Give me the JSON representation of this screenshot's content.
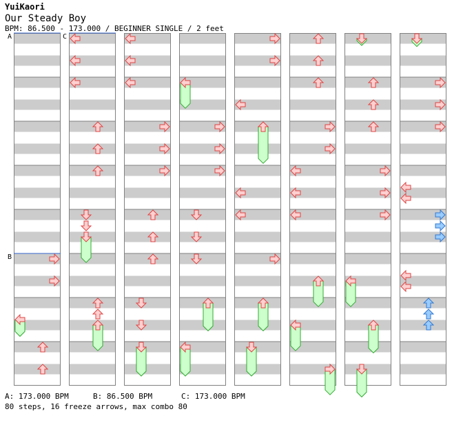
{
  "header": {
    "artist": "YuiKaori",
    "title": "Our Steady Boy",
    "info": "BPM: 86.500 - 173.000 / BEGINNER SINGLE / 2 feet"
  },
  "bpm_markers": [
    {
      "id": "A",
      "label": "A",
      "column": 0,
      "measure": 0
    },
    {
      "id": "B",
      "label": "B",
      "column": 0,
      "measure": 5
    },
    {
      "id": "C",
      "label": "C",
      "column": 1,
      "measure": 0
    }
  ],
  "legend": [
    {
      "label": "A: 173.000 BPM"
    },
    {
      "label": "B: 86.500 BPM"
    },
    {
      "label": "C: 173.000 BPM"
    }
  ],
  "summary": "80 steps, 16 freeze arrows, max combo 80",
  "colors": {
    "stripe": "#cccccc",
    "border": "#808080",
    "arrow_red_fill": "#ffd0d0",
    "arrow_red_stroke": "#dd4444",
    "arrow_blue_fill": "#99ccff",
    "arrow_blue_stroke": "#3377cc",
    "freeze_fill": "#ccffcc",
    "freeze_stroke": "#33aa33",
    "marker_line": "#3366cc"
  },
  "chart_data": {
    "type": "step-chart",
    "columns": 8,
    "measures_per_column": 8,
    "beats_per_measure": 4,
    "arrows": [
      {
        "col": 1,
        "m": 0,
        "b": 0,
        "dir": "left"
      },
      {
        "col": 1,
        "m": 0,
        "b": 2,
        "dir": "left"
      },
      {
        "col": 1,
        "m": 1,
        "b": 0,
        "dir": "left"
      },
      {
        "col": 1,
        "m": 2,
        "b": 0,
        "dir": "up"
      },
      {
        "col": 1,
        "m": 2,
        "b": 2,
        "dir": "up"
      },
      {
        "col": 1,
        "m": 3,
        "b": 0,
        "dir": "up"
      },
      {
        "col": 1,
        "m": 4,
        "b": 0,
        "dir": "down"
      },
      {
        "col": 1,
        "m": 4,
        "b": 1,
        "dir": "down"
      },
      {
        "col": 1,
        "m": 6,
        "b": 0,
        "dir": "up"
      },
      {
        "col": 1,
        "m": 6,
        "b": 1,
        "dir": "up"
      },
      {
        "col": 0,
        "m": 5,
        "b": 0,
        "dir": "right"
      },
      {
        "col": 0,
        "m": 5,
        "b": 2,
        "dir": "right"
      },
      {
        "col": 0,
        "m": 7,
        "b": 0,
        "dir": "up"
      },
      {
        "col": 0,
        "m": 7,
        "b": 2,
        "dir": "up"
      },
      {
        "col": 2,
        "m": 0,
        "b": 0,
        "dir": "left"
      },
      {
        "col": 2,
        "m": 0,
        "b": 2,
        "dir": "left"
      },
      {
        "col": 2,
        "m": 1,
        "b": 0,
        "dir": "left"
      },
      {
        "col": 2,
        "m": 2,
        "b": 0,
        "dir": "right"
      },
      {
        "col": 2,
        "m": 2,
        "b": 2,
        "dir": "right"
      },
      {
        "col": 2,
        "m": 3,
        "b": 0,
        "dir": "right"
      },
      {
        "col": 2,
        "m": 4,
        "b": 0,
        "dir": "up"
      },
      {
        "col": 2,
        "m": 4,
        "b": 2,
        "dir": "up"
      },
      {
        "col": 2,
        "m": 5,
        "b": 0,
        "dir": "up"
      },
      {
        "col": 2,
        "m": 6,
        "b": 0,
        "dir": "down"
      },
      {
        "col": 2,
        "m": 6,
        "b": 2,
        "dir": "down"
      },
      {
        "col": 3,
        "m": 2,
        "b": 0,
        "dir": "right"
      },
      {
        "col": 3,
        "m": 2,
        "b": 2,
        "dir": "right"
      },
      {
        "col": 3,
        "m": 3,
        "b": 0,
        "dir": "right"
      },
      {
        "col": 3,
        "m": 4,
        "b": 0,
        "dir": "down"
      },
      {
        "col": 3,
        "m": 4,
        "b": 2,
        "dir": "down"
      },
      {
        "col": 3,
        "m": 5,
        "b": 0,
        "dir": "down"
      },
      {
        "col": 4,
        "m": 0,
        "b": 0,
        "dir": "right"
      },
      {
        "col": 4,
        "m": 0,
        "b": 2,
        "dir": "right"
      },
      {
        "col": 4,
        "m": 1,
        "b": 2,
        "dir": "left"
      },
      {
        "col": 4,
        "m": 3,
        "b": 2,
        "dir": "left"
      },
      {
        "col": 4,
        "m": 4,
        "b": 0,
        "dir": "left"
      },
      {
        "col": 4,
        "m": 5,
        "b": 0,
        "dir": "right"
      },
      {
        "col": 5,
        "m": 0,
        "b": 0,
        "dir": "up"
      },
      {
        "col": 5,
        "m": 0,
        "b": 2,
        "dir": "up"
      },
      {
        "col": 5,
        "m": 1,
        "b": 0,
        "dir": "up"
      },
      {
        "col": 5,
        "m": 2,
        "b": 0,
        "dir": "right"
      },
      {
        "col": 5,
        "m": 2,
        "b": 2,
        "dir": "right"
      },
      {
        "col": 5,
        "m": 3,
        "b": 0,
        "dir": "left"
      },
      {
        "col": 5,
        "m": 3,
        "b": 2,
        "dir": "left"
      },
      {
        "col": 5,
        "m": 4,
        "b": 0,
        "dir": "left"
      },
      {
        "col": 6,
        "m": 1,
        "b": 0,
        "dir": "up"
      },
      {
        "col": 6,
        "m": 1,
        "b": 2,
        "dir": "up"
      },
      {
        "col": 6,
        "m": 2,
        "b": 0,
        "dir": "up"
      },
      {
        "col": 6,
        "m": 3,
        "b": 0,
        "dir": "right"
      },
      {
        "col": 6,
        "m": 3,
        "b": 2,
        "dir": "right"
      },
      {
        "col": 6,
        "m": 4,
        "b": 0,
        "dir": "right"
      },
      {
        "col": 7,
        "m": 1,
        "b": 0,
        "dir": "right"
      },
      {
        "col": 7,
        "m": 1,
        "b": 2,
        "dir": "right"
      },
      {
        "col": 7,
        "m": 2,
        "b": 0,
        "dir": "right"
      },
      {
        "col": 7,
        "m": 3,
        "b": 1.5,
        "dir": "left"
      },
      {
        "col": 7,
        "m": 3,
        "b": 2.5,
        "dir": "left"
      },
      {
        "col": 7,
        "m": 4,
        "b": 0,
        "dir": "right",
        "blue": true
      },
      {
        "col": 7,
        "m": 4,
        "b": 1,
        "dir": "right",
        "blue": true
      },
      {
        "col": 7,
        "m": 4,
        "b": 2,
        "dir": "right",
        "blue": true
      },
      {
        "col": 7,
        "m": 5,
        "b": 1.5,
        "dir": "left"
      },
      {
        "col": 7,
        "m": 5,
        "b": 2.5,
        "dir": "left"
      },
      {
        "col": 7,
        "m": 6,
        "b": 0,
        "dir": "up",
        "blue": true
      },
      {
        "col": 7,
        "m": 6,
        "b": 1,
        "dir": "up",
        "blue": true
      },
      {
        "col": 7,
        "m": 6,
        "b": 2,
        "dir": "up",
        "blue": true
      }
    ],
    "freezes": [
      {
        "col": 1,
        "m": 4,
        "b": 2,
        "len": 2.2,
        "dir": "down"
      },
      {
        "col": 1,
        "m": 6,
        "b": 2,
        "len": 2.2,
        "dir": "up"
      },
      {
        "col": 0,
        "m": 6,
        "b": 1.5,
        "len": 1.4,
        "dir": "left"
      },
      {
        "col": 2,
        "m": 7,
        "b": 0,
        "len": 2.5,
        "dir": "down"
      },
      {
        "col": 3,
        "m": 1,
        "b": 0,
        "len": 2.2,
        "dir": "left"
      },
      {
        "col": 3,
        "m": 6,
        "b": 0,
        "len": 2.4,
        "dir": "up"
      },
      {
        "col": 3,
        "m": 7,
        "b": 0,
        "len": 2.5,
        "dir": "left"
      },
      {
        "col": 4,
        "m": 2,
        "b": 0,
        "len": 3.2,
        "dir": "up"
      },
      {
        "col": 4,
        "m": 6,
        "b": 0,
        "len": 2.4,
        "dir": "up"
      },
      {
        "col": 4,
        "m": 7,
        "b": 0,
        "len": 2.5,
        "dir": "down"
      },
      {
        "col": 5,
        "m": 5,
        "b": 2,
        "len": 2.2,
        "dir": "up"
      },
      {
        "col": 5,
        "m": 6,
        "b": 2,
        "len": 2.2,
        "dir": "left"
      },
      {
        "col": 5,
        "m": 7,
        "b": 2,
        "len": 2.2,
        "dir": "right"
      },
      {
        "col": 6,
        "m": 0,
        "b": 0,
        "len": 0.5,
        "dir": "down"
      },
      {
        "col": 6,
        "m": 5,
        "b": 2,
        "len": 2.2,
        "dir": "left"
      },
      {
        "col": 6,
        "m": 6,
        "b": 2,
        "len": 2.4,
        "dir": "up"
      },
      {
        "col": 6,
        "m": 7,
        "b": 2,
        "len": 2.4,
        "dir": "down"
      },
      {
        "col": 7,
        "m": 0,
        "b": 0,
        "len": 0.6,
        "dir": "down"
      }
    ]
  }
}
